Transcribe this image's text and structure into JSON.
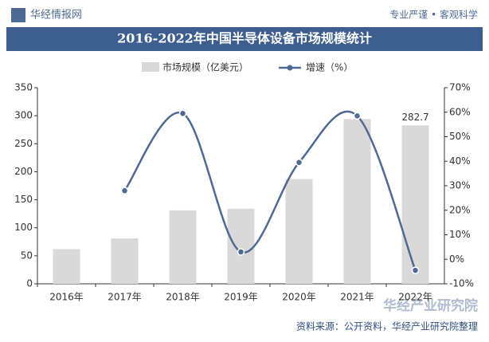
{
  "header": {
    "brand": "华经情报网",
    "slogan": "专业严谨 • 客观科学"
  },
  "chart_data": {
    "type": "bar-line",
    "title": "2016-2022年中国半导体设备市场规模统计",
    "categories": [
      "2016年",
      "2017年",
      "2018年",
      "2019年",
      "2020年",
      "2021年",
      "2022年"
    ],
    "series": [
      {
        "name": "市场规模（亿美元）",
        "color": "#d9d9d9",
        "values": [
          62,
          81,
          131,
          134,
          187,
          294,
          282.7
        ],
        "value_labels": [
          null,
          null,
          null,
          null,
          null,
          null,
          "282.7"
        ]
      },
      {
        "name": "增速（%）",
        "color": "#4e6a94",
        "axis": "y2",
        "values": [
          null,
          28,
          59.5,
          3,
          39.5,
          58.5,
          -4.5
        ]
      }
    ],
    "ylim": [
      0,
      350
    ],
    "yticks": [
      0,
      50,
      100,
      150,
      200,
      250,
      300,
      350
    ],
    "y2lim": [
      -10,
      70
    ],
    "y2ticks": [
      {
        "value": -10,
        "label": "-10%"
      },
      {
        "value": 0,
        "label": "0%"
      },
      {
        "value": 10,
        "label": "10%"
      },
      {
        "value": 20,
        "label": "20%"
      },
      {
        "value": 30,
        "label": "30%"
      },
      {
        "value": 40,
        "label": "40%"
      },
      {
        "value": 50,
        "label": "50%"
      },
      {
        "value": 60,
        "label": "60%"
      },
      {
        "value": 70,
        "label": "70%"
      }
    ]
  },
  "footer": {
    "source": "资料来源：公开资料，华经产业研究院整理",
    "logo": "华经产业研究院"
  }
}
